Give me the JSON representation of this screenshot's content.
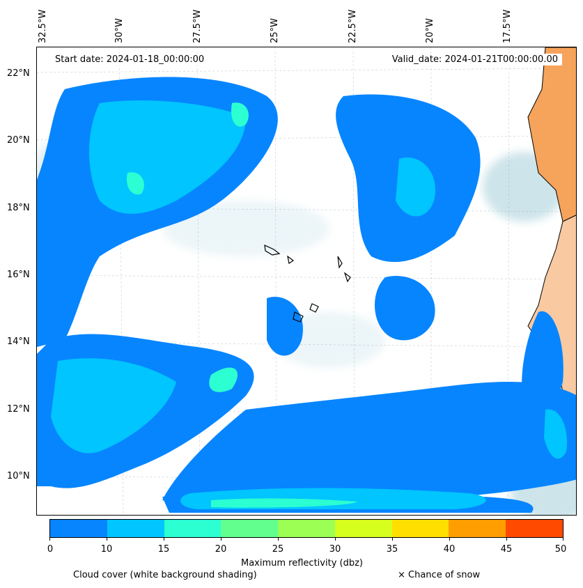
{
  "map": {
    "start_date": "Start date: 2024-01-18_00:00:00",
    "valid_date": "Valid_date: 2024-01-21T00:00:00.00",
    "longitude_labels": [
      "32.5°W",
      "30°W",
      "27.5°W",
      "25°W",
      "22.5°W",
      "20°W",
      "17.5°W"
    ],
    "latitude_labels": [
      "22°N",
      "20°N",
      "18°N",
      "16°N",
      "14°N",
      "12°N",
      "10°N"
    ],
    "colors": {
      "land": "#f6a35c",
      "land_light": "#f9c9a1",
      "cloud_shading": "#bcdbe3",
      "reflectivity_0_10": "#0785ff",
      "reflectivity_10_15": "#00c5ff",
      "reflectivity_15_20": "#2cffd2"
    }
  },
  "colorbar": {
    "ticks": [
      "0",
      "10",
      "15",
      "20",
      "25",
      "30",
      "35",
      "40",
      "45",
      "50"
    ],
    "colors": [
      "#0785ff",
      "#00c5ff",
      "#2cffd2",
      "#62ff8f",
      "#9bff54",
      "#d6ff1e",
      "#ffdf00",
      "#ff9e00",
      "#ff8000",
      "#ff4a00"
    ],
    "label": "Maximum reflectivity (dbz)"
  },
  "legend": {
    "cloud_cover": "Cloud cover (white background shading)",
    "snow": "× Chance of snow"
  }
}
